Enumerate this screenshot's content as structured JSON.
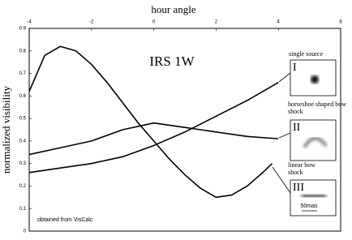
{
  "chart_data": {
    "type": "line",
    "title": "IRS 1W",
    "xlabel": "hour angle",
    "ylabel": "normalized visibility",
    "note": "obtained from VisCalc",
    "scale_bar": "50mas",
    "xlim": [
      -4,
      6
    ],
    "xticks": [
      -4,
      -2,
      0,
      2,
      4,
      6
    ],
    "ylim": [
      0,
      0.9
    ],
    "yticks": [
      0,
      0.1,
      0.2,
      0.3,
      0.4,
      0.5,
      0.6,
      0.7,
      0.8,
      0.9
    ],
    "series": [
      {
        "name": "single source",
        "id": "I",
        "color": "#000000",
        "x": [
          -4,
          -3,
          -2,
          -1,
          0,
          1,
          2,
          3,
          4
        ],
        "values": [
          0.26,
          0.28,
          0.3,
          0.33,
          0.38,
          0.44,
          0.51,
          0.58,
          0.66
        ]
      },
      {
        "name": "horseshoe shaped bow shock",
        "id": "II",
        "color": "#000000",
        "x": [
          -4,
          -3,
          -2,
          -1,
          0,
          1,
          2,
          3,
          4
        ],
        "values": [
          0.34,
          0.37,
          0.4,
          0.45,
          0.48,
          0.46,
          0.44,
          0.42,
          0.41
        ]
      },
      {
        "name": "linear bow shock",
        "id": "III",
        "color": "#000000",
        "x": [
          -4,
          -3.5,
          -3,
          -2.5,
          -2,
          -1.5,
          -1,
          -0.5,
          0,
          0.5,
          1,
          1.5,
          2,
          2.5,
          3,
          3.5,
          3.8
        ],
        "values": [
          0.62,
          0.78,
          0.82,
          0.8,
          0.74,
          0.66,
          0.57,
          0.48,
          0.4,
          0.32,
          0.25,
          0.19,
          0.15,
          0.16,
          0.2,
          0.26,
          0.3
        ]
      }
    ]
  }
}
